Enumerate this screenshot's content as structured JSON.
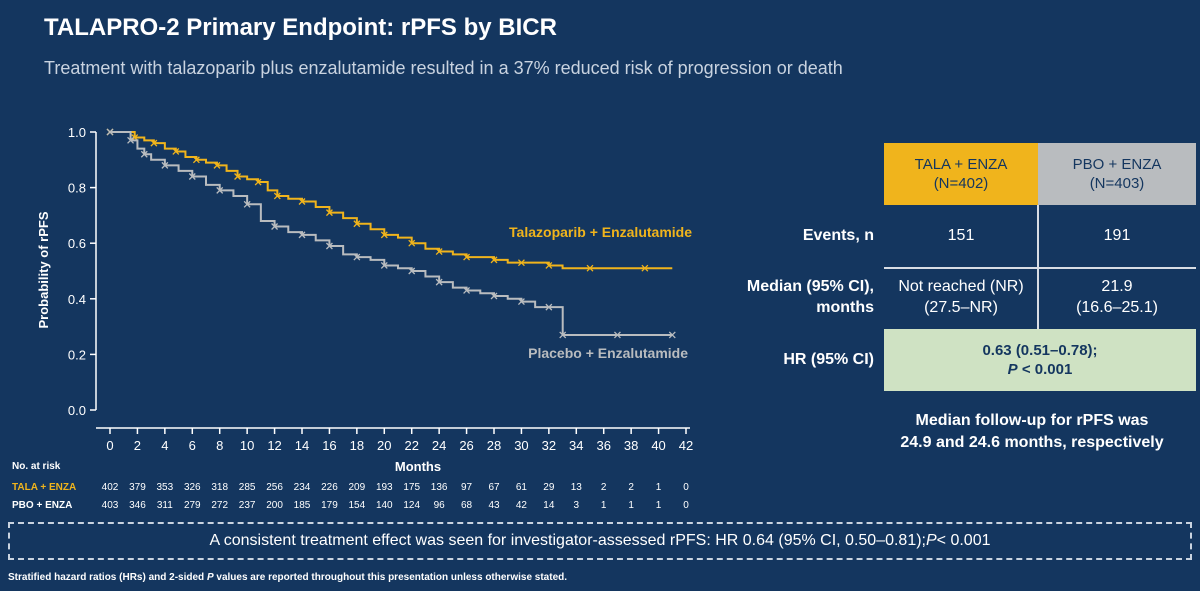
{
  "slide": {
    "title": "TALAPRO-2 Primary Endpoint: rPFS by BICR",
    "subtitle": "Treatment with talazoparib plus enzalutamide resulted in a 37% reduced risk of progression or death",
    "consistent_effect": {
      "text_before": "A consistent treatment effect was seen for investigator-assessed rPFS: HR 0.64 (95% CI, 0.50–0.81); ",
      "p_label": "P",
      "text_after": " < 0.001"
    },
    "footnote": {
      "before": "Stratified hazard ratios (HRs) and 2-sided ",
      "p_label": "P",
      "after": " values are reported throughout this presentation unless otherwise stated."
    },
    "followup_line1": "Median follow-up for rPFS was",
    "followup_line2": "24.9 and 24.6 months, respectively"
  },
  "table": {
    "col1_line1": "TALA + ENZA",
    "col1_line2": "(N=402)",
    "col2_line1": "PBO + ENZA",
    "col2_line2": "(N=403)",
    "events_label": "Events, n",
    "events_tala": "151",
    "events_pbo": "191",
    "median_label_line1": "Median (95% CI),",
    "median_label_line2": "months",
    "median_tala_line1": "Not reached (NR)",
    "median_tala_line2": "(27.5–NR)",
    "median_pbo_line1": "21.9",
    "median_pbo_line2": "(16.6–25.1)",
    "hr_label": "HR (95% CI)",
    "hr_value_line1": "0.63 (0.51–0.78);",
    "hr_p_label": "P",
    "hr_p_value": " < 0.001"
  },
  "colors": {
    "background": "#14365f",
    "tala": "#f0b41c",
    "pbo": "#b9bcbf",
    "hr_box": "#cfe2c3"
  },
  "chart_data": {
    "type": "line",
    "title": "",
    "xlabel": "Months",
    "ylabel": "Probability of rPFS",
    "xlim": [
      0,
      42
    ],
    "ylim": [
      0,
      1.0
    ],
    "xticks": [
      0,
      2,
      4,
      6,
      8,
      10,
      12,
      14,
      16,
      18,
      20,
      22,
      24,
      26,
      28,
      30,
      32,
      34,
      36,
      38,
      40,
      42
    ],
    "yticks": [
      "0.0",
      "0.2",
      "0.4",
      "0.6",
      "0.8",
      "1.0"
    ],
    "series": [
      {
        "name": "Talazoparib + Enzalutamide",
        "color": "#f0b41c",
        "points": [
          [
            0,
            1.0
          ],
          [
            1,
            1.0
          ],
          [
            1.8,
            0.98
          ],
          [
            2.5,
            0.97
          ],
          [
            3.2,
            0.96
          ],
          [
            4,
            0.94
          ],
          [
            4.8,
            0.93
          ],
          [
            5.5,
            0.91
          ],
          [
            6.3,
            0.9
          ],
          [
            7,
            0.89
          ],
          [
            7.8,
            0.88
          ],
          [
            8.5,
            0.86
          ],
          [
            9.3,
            0.84
          ],
          [
            10,
            0.83
          ],
          [
            10.8,
            0.82
          ],
          [
            11.5,
            0.79
          ],
          [
            12.2,
            0.77
          ],
          [
            13,
            0.76
          ],
          [
            14,
            0.75
          ],
          [
            15,
            0.73
          ],
          [
            16,
            0.71
          ],
          [
            17,
            0.69
          ],
          [
            18,
            0.67
          ],
          [
            19,
            0.65
          ],
          [
            20,
            0.63
          ],
          [
            21,
            0.62
          ],
          [
            22,
            0.6
          ],
          [
            23,
            0.58
          ],
          [
            24,
            0.57
          ],
          [
            25,
            0.56
          ],
          [
            26,
            0.55
          ],
          [
            27,
            0.55
          ],
          [
            28,
            0.54
          ],
          [
            29,
            0.53
          ],
          [
            30,
            0.53
          ],
          [
            31,
            0.53
          ],
          [
            32,
            0.52
          ],
          [
            33,
            0.51
          ],
          [
            35,
            0.51
          ],
          [
            37,
            0.51
          ],
          [
            39,
            0.51
          ],
          [
            41,
            0.51
          ]
        ]
      },
      {
        "name": "Placebo + Enzalutamide",
        "color": "#b9bcbf",
        "points": [
          [
            0,
            1.0
          ],
          [
            1,
            1.0
          ],
          [
            1.5,
            0.97
          ],
          [
            2,
            0.94
          ],
          [
            2.5,
            0.92
          ],
          [
            3,
            0.9
          ],
          [
            4,
            0.88
          ],
          [
            5,
            0.86
          ],
          [
            6,
            0.84
          ],
          [
            7,
            0.81
          ],
          [
            8,
            0.79
          ],
          [
            9,
            0.77
          ],
          [
            10,
            0.74
          ],
          [
            11,
            0.68
          ],
          [
            12,
            0.66
          ],
          [
            13,
            0.64
          ],
          [
            14,
            0.63
          ],
          [
            15,
            0.61
          ],
          [
            16,
            0.59
          ],
          [
            17,
            0.56
          ],
          [
            18,
            0.55
          ],
          [
            19,
            0.54
          ],
          [
            20,
            0.52
          ],
          [
            21,
            0.51
          ],
          [
            22,
            0.5
          ],
          [
            23,
            0.48
          ],
          [
            24,
            0.46
          ],
          [
            25,
            0.44
          ],
          [
            26,
            0.43
          ],
          [
            27,
            0.42
          ],
          [
            28,
            0.41
          ],
          [
            29,
            0.4
          ],
          [
            30,
            0.39
          ],
          [
            31,
            0.37
          ],
          [
            32,
            0.37
          ],
          [
            33,
            0.37
          ],
          [
            33.01,
            0.27
          ],
          [
            35,
            0.27
          ],
          [
            37,
            0.27
          ],
          [
            39,
            0.27
          ],
          [
            41,
            0.27
          ]
        ]
      }
    ],
    "series_labels": {
      "tala": "Talazoparib + Enzalutamide",
      "pbo": "Placebo + Enzalutamide"
    },
    "at_risk": {
      "heading": "No. at risk",
      "tala_label": "TALA + ENZA",
      "pbo_label": "PBO + ENZA",
      "tala": [
        "402",
        "379",
        "353",
        "326",
        "318",
        "285",
        "256",
        "234",
        "226",
        "209",
        "193",
        "175",
        "136",
        "97",
        "67",
        "61",
        "29",
        "13",
        "2",
        "2",
        "1",
        "0"
      ],
      "pbo": [
        "403",
        "346",
        "311",
        "279",
        "272",
        "237",
        "200",
        "185",
        "179",
        "154",
        "140",
        "124",
        "96",
        "68",
        "43",
        "42",
        "14",
        "3",
        "1",
        "1",
        "1",
        "0"
      ]
    }
  }
}
